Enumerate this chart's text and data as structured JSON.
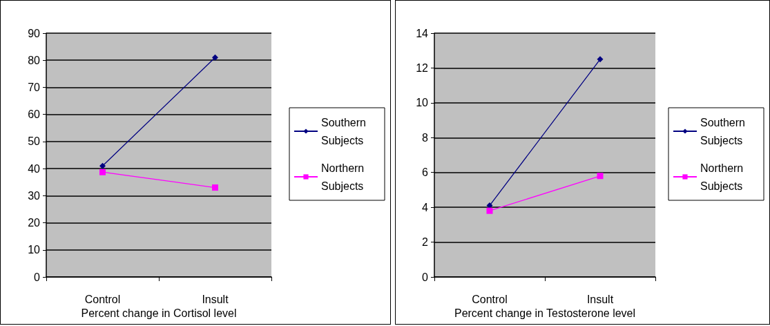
{
  "chart_data": [
    {
      "type": "line",
      "xlabel": "Percent change in Cortisol level",
      "categories": [
        "Control",
        "Insult"
      ],
      "series": [
        {
          "name": "Southern Subjects",
          "color": "#000080",
          "marker": "diamond",
          "values": [
            41,
            81
          ]
        },
        {
          "name": "Northern Subjects",
          "color": "#ff00ff",
          "marker": "square",
          "values": [
            38.7,
            33
          ]
        }
      ],
      "ylim": [
        0,
        90
      ],
      "yticks": [
        0,
        10,
        20,
        30,
        40,
        50,
        60,
        70,
        80,
        90
      ],
      "grid": "y",
      "legend": "right"
    },
    {
      "type": "line",
      "xlabel": "Percent change in Testosterone level",
      "categories": [
        "Control",
        "Insult"
      ],
      "series": [
        {
          "name": "Southern Subjects",
          "color": "#000080",
          "marker": "diamond",
          "values": [
            4.1,
            12.5
          ]
        },
        {
          "name": "Northern Subjects",
          "color": "#ff00ff",
          "marker": "square",
          "values": [
            3.8,
            5.8
          ]
        }
      ],
      "ylim": [
        0,
        14
      ],
      "yticks": [
        0,
        2,
        4,
        6,
        8,
        10,
        12,
        14
      ],
      "grid": "y",
      "legend": "right"
    }
  ]
}
